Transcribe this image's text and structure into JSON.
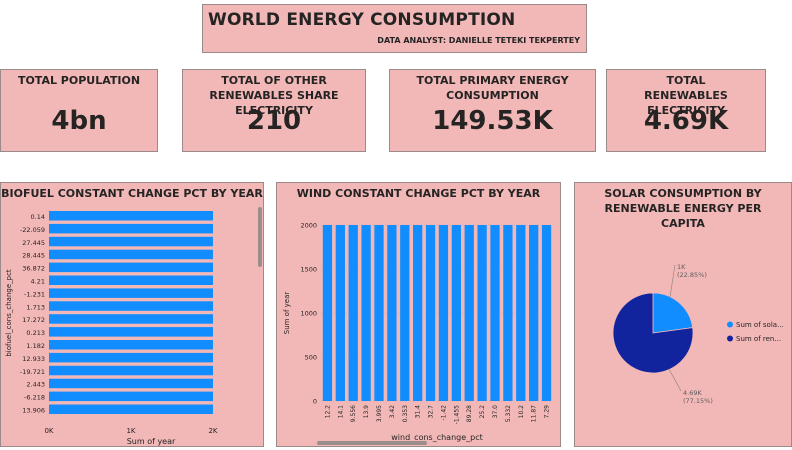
{
  "header": {
    "title": "WORLD ENERGY CONSUMPTION",
    "subtitle": "DATA ANALYST: DANIELLE TETEKI TEKPERTEY"
  },
  "cards": [
    {
      "label": "TOTAL POPULATION",
      "value": "4bn"
    },
    {
      "label": "TOTAL OF OTHER RENEWABLES SHARE ELECTRICITY",
      "value": "210"
    },
    {
      "label": "TOTAL PRIMARY ENERGY CONSUMPTION",
      "value": "149.53K"
    },
    {
      "label": "TOTAL RENEWABLES ELECTRICITY",
      "value": "4.69K"
    }
  ],
  "colors": {
    "bar": "#118dff",
    "dark": "#12239e",
    "panel": "#f2b8b8"
  },
  "chart_data": [
    {
      "type": "bar",
      "orientation": "horizontal",
      "title": "BIOFUEL CONSTANT CHANGE PCT BY YEAR",
      "xlabel": "Sum of year",
      "ylabel": "biofuel_cons_change_pct",
      "categories": [
        "0.14",
        "-22.059",
        "27.445",
        "28.445",
        "36.872",
        "4.21",
        "-1.231",
        "1.713",
        "17.272",
        "0.213",
        "1.182",
        "12.933",
        "-19.721",
        "2.443",
        "-6.218",
        "13.906"
      ],
      "values": [
        2000,
        2000,
        2000,
        2000,
        2000,
        2000,
        2000,
        2000,
        2000,
        2000,
        2000,
        2000,
        2000,
        2000,
        2000,
        2000
      ],
      "xticks": [
        "0K",
        "1K",
        "2K"
      ],
      "xlim": [
        0,
        2000
      ],
      "grid": false
    },
    {
      "type": "bar",
      "orientation": "vertical",
      "title": "WIND CONSTANT CHANGE PCT BY YEAR",
      "xlabel": "wind_cons_change_pct",
      "ylabel": "Sum of year",
      "categories": [
        "12.2",
        "14.1",
        "9.556",
        "13.9",
        "3.995",
        "3.42",
        "0.353",
        "31.4",
        "32.7",
        "-1.42",
        "-1.455",
        "89.28",
        "25.2",
        "37.0",
        "5.332",
        "10.2",
        "11.87",
        "7.29"
      ],
      "values": [
        2000,
        2000,
        2000,
        2000,
        2000,
        2000,
        2000,
        2000,
        2000,
        2000,
        2000,
        2000,
        2000,
        2000,
        2000,
        2000,
        2000,
        2000
      ],
      "yticks": [
        "0",
        "500",
        "1000",
        "1500",
        "2000"
      ],
      "ylim": [
        0,
        2000
      ],
      "grid": true
    },
    {
      "type": "pie",
      "title": "SOLAR CONSUMPTION BY RENEWABLE ENERGY PER CAPITA",
      "slices": [
        {
          "name": "Sum of sola...",
          "value_label": "1K",
          "pct_label": "(22.85%)",
          "pct": 22.85,
          "color": "#118dff"
        },
        {
          "name": "Sum of ren...",
          "value_label": "4.69K",
          "pct_label": "(77.15%)",
          "pct": 77.15,
          "color": "#12239e"
        }
      ],
      "legend": "right"
    }
  ]
}
